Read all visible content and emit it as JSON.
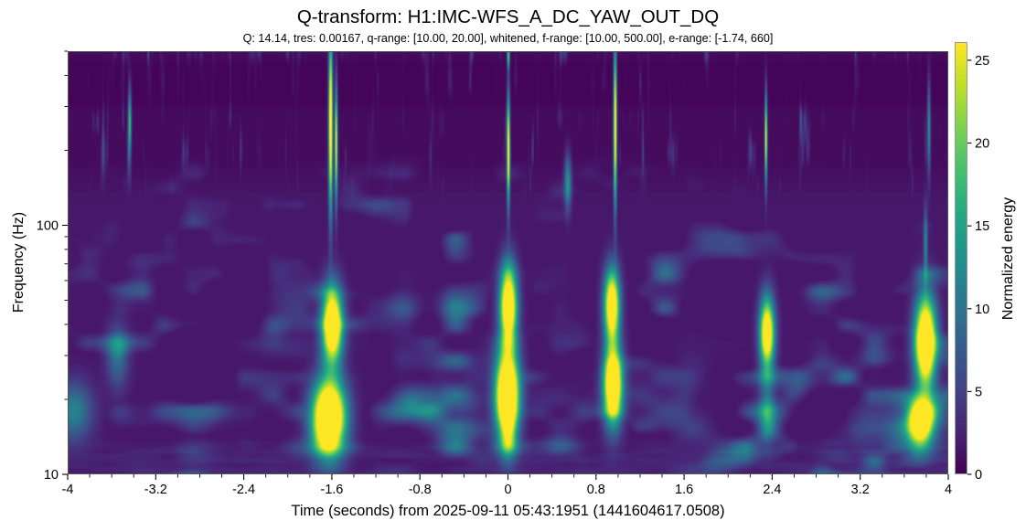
{
  "chart_data": {
    "type": "heatmap",
    "subtype": "q-transform-spectrogram",
    "title": "Q-transform: H1:IMC-WFS_A_DC_YAW_OUT_DQ",
    "subtitle": "Q: 14.14, tres: 0.00167, q-range: [10.00, 20.00], whitened, f-range: [10.00, 500.00], e-range: [-1.74, 660]",
    "xlabel": "Time (seconds) from 2025-09-11 05:43:1951 (1441604617.0508)",
    "ylabel": "Frequency (Hz)",
    "x_axis": {
      "min": -4,
      "max": 4,
      "minor_step": 0.2,
      "major_ticks": [
        {
          "v": -4,
          "label": "-4"
        },
        {
          "v": -3.2,
          "label": "-3.2"
        },
        {
          "v": -2.4,
          "label": "-2.4"
        },
        {
          "v": -1.6,
          "label": "-1.6"
        },
        {
          "v": -0.8,
          "label": "-0.8"
        },
        {
          "v": 0,
          "label": "0"
        },
        {
          "v": 0.8,
          "label": "0.8"
        },
        {
          "v": 1.6,
          "label": "1.6"
        },
        {
          "v": 2.4,
          "label": "2.4"
        },
        {
          "v": 3.2,
          "label": "3.2"
        },
        {
          "v": 4,
          "label": "4"
        }
      ]
    },
    "y_axis": {
      "scale": "log",
      "min": 10,
      "max": 500,
      "major_ticks": [
        {
          "v": 10,
          "label": "10"
        },
        {
          "v": 100,
          "label": "100"
        }
      ],
      "minor_ticks": [
        20,
        30,
        40,
        50,
        60,
        70,
        80,
        90,
        200,
        300,
        400,
        500
      ]
    },
    "colorbar": {
      "label": "Normalized energy",
      "min": 0,
      "max": 26.1,
      "ticks": [
        {
          "v": 0,
          "label": "0"
        },
        {
          "v": 5,
          "label": "5"
        },
        {
          "v": 10,
          "label": "10"
        },
        {
          "v": 15,
          "label": "15"
        },
        {
          "v": 20,
          "label": "20"
        },
        {
          "v": 25,
          "label": "25"
        }
      ]
    },
    "colormap": {
      "name": "viridis",
      "stops": [
        "#440154",
        "#482475",
        "#414487",
        "#355f8d",
        "#2a788e",
        "#21918c",
        "#22a884",
        "#44bf70",
        "#7ad151",
        "#bddf26",
        "#fde725"
      ]
    },
    "background": {
      "base_energy": 0.7,
      "mottle_max_energy": 13,
      "dark_band_f": [
        300,
        460
      ],
      "texture": "speckled teal mottling below ~180 Hz, faint vertical streaks above, darker quiet band 300-460 Hz"
    },
    "bursts": [
      {
        "t": -1.63,
        "f": 17,
        "dt": 0.105,
        "df": 0.105,
        "e": 42
      },
      {
        "t": -1.6,
        "f": 40,
        "dt": 0.065,
        "df": 0.105,
        "e": 36
      },
      {
        "t": -1.615,
        "f": 260,
        "dt": 0.013,
        "df": 0.24,
        "e": 32
      },
      {
        "t": -1.565,
        "f": 215,
        "dt": 0.009,
        "df": 0.16,
        "e": 26
      },
      {
        "t": -0.01,
        "f": 21,
        "dt": 0.075,
        "df": 0.12,
        "e": 42
      },
      {
        "t": 0.0,
        "f": 48,
        "dt": 0.055,
        "df": 0.11,
        "e": 34
      },
      {
        "t": 0.0,
        "f": 14,
        "dt": 0.05,
        "df": 0.06,
        "e": 10
      },
      {
        "t": 0.0,
        "f": 205,
        "dt": 0.01,
        "df": 0.155,
        "e": 28
      },
      {
        "t": 0.0,
        "f": 480,
        "dt": 0.008,
        "df": 0.035,
        "e": 18
      },
      {
        "t": 0.95,
        "f": 23,
        "dt": 0.06,
        "df": 0.11,
        "e": 36
      },
      {
        "t": 0.94,
        "f": 48,
        "dt": 0.05,
        "df": 0.1,
        "e": 32
      },
      {
        "t": 0.97,
        "f": 255,
        "dt": 0.01,
        "df": 0.22,
        "e": 30
      },
      {
        "t": 0.54,
        "f": 150,
        "dt": 0.022,
        "df": 0.075,
        "e": 12
      },
      {
        "t": 2.35,
        "f": 37,
        "dt": 0.048,
        "df": 0.1,
        "e": 32
      },
      {
        "t": 2.35,
        "f": 18,
        "dt": 0.05,
        "df": 0.09,
        "e": 9
      },
      {
        "t": 2.34,
        "f": 225,
        "dt": 0.008,
        "df": 0.125,
        "e": 26
      },
      {
        "t": 3.79,
        "f": 34,
        "dt": 0.068,
        "df": 0.13,
        "e": 38
      },
      {
        "t": 3.74,
        "f": 16,
        "dt": 0.085,
        "df": 0.07,
        "e": 30
      },
      {
        "t": 3.79,
        "f": 85,
        "dt": 0.012,
        "df": 0.1,
        "e": 10
      },
      {
        "t": 3.82,
        "f": 250,
        "dt": 0.01,
        "df": 0.13,
        "e": 12
      },
      {
        "t": -3.44,
        "f": 260,
        "dt": 0.01,
        "df": 0.1,
        "e": 16
      },
      {
        "t": -3.95,
        "f": 18,
        "dt": 0.12,
        "df": 0.08,
        "e": 10
      },
      {
        "t": -3.55,
        "f": 30,
        "dt": 0.07,
        "df": 0.09,
        "e": 8
      }
    ]
  }
}
